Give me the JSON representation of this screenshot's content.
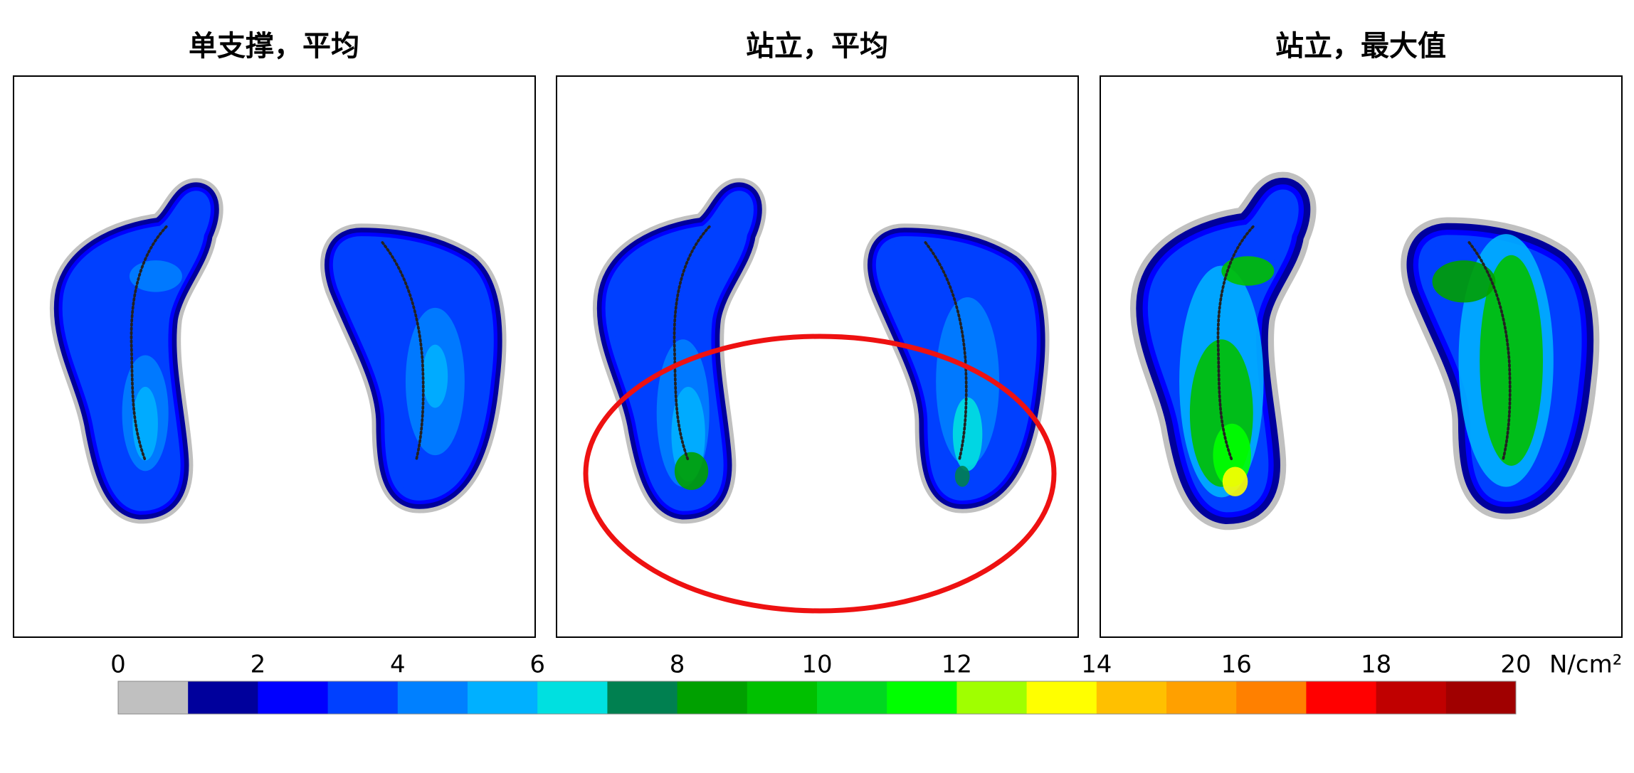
{
  "panels": [
    {
      "title": "单支撑，平均"
    },
    {
      "title": "站立，平均"
    },
    {
      "title": "站立，最大值"
    }
  ],
  "colorbar": {
    "range": [
      0,
      20
    ],
    "ticks": [
      0,
      2,
      4,
      6,
      8,
      10,
      12,
      14,
      16,
      18,
      20
    ],
    "unit": "N/cm²",
    "colors": [
      "#c0c0c0",
      "#00009c",
      "#0000ff",
      "#0040ff",
      "#0080ff",
      "#00b0ff",
      "#00e0e0",
      "#008050",
      "#00a000",
      "#00c000",
      "#00d820",
      "#00ff00",
      "#a0ff00",
      "#ffff00",
      "#ffc000",
      "#ffa000",
      "#ff8000",
      "#ff0000",
      "#c00000",
      "#a00000"
    ]
  }
}
